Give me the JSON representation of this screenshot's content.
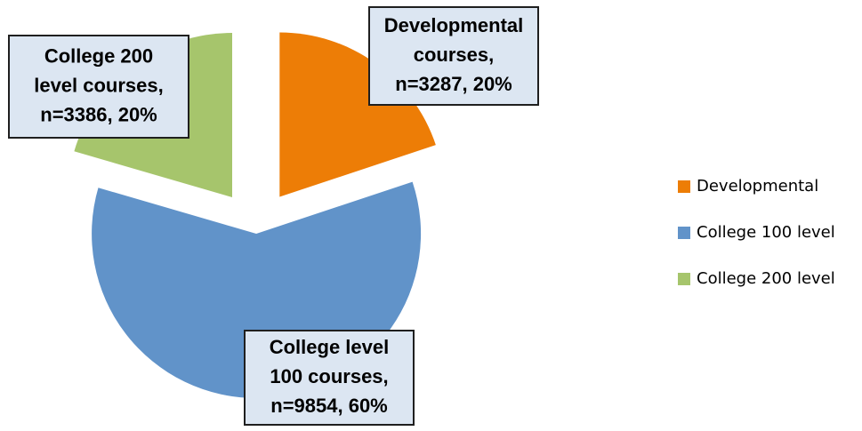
{
  "chart_data": {
    "type": "pie",
    "categories": [
      "Developmental",
      "College 100 level",
      "College 200 level"
    ],
    "values": [
      3287,
      9854,
      3386
    ],
    "value_labels": [
      [
        "Developmental",
        "courses,",
        "n=3287, 20%"
      ],
      [
        "College level",
        "100 courses,",
        "n=9854, 60%"
      ],
      [
        "College 200",
        "level courses,",
        "n=3386, 20%"
      ]
    ],
    "colors": [
      "#ed7d06",
      "#6193c9",
      "#a6c56c"
    ],
    "legend": "right"
  }
}
